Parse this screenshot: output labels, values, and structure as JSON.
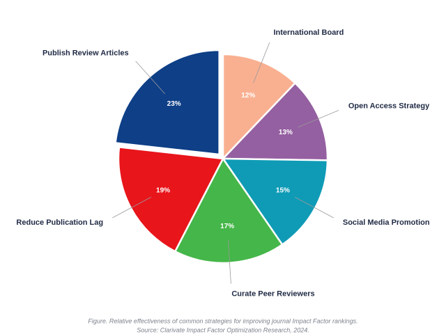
{
  "chart_data": {
    "type": "pie",
    "categories": [
      "International Board",
      "Open Access Strategy",
      "Social Media Promotion",
      "Curate Peer Reviewers",
      "Reduce Publication Lag",
      "Publish Review Articles"
    ],
    "values": [
      12,
      13,
      15,
      17,
      19,
      23
    ],
    "value_labels": [
      "12%",
      "13%",
      "15%",
      "17%",
      "19%",
      "23%"
    ],
    "colors": [
      "#f9b091",
      "#9460a1",
      "#0f9bb6",
      "#45b649",
      "#e8151b",
      "#0e3f87"
    ],
    "explode": 5,
    "caption": [
      "Figure. Relative effectiveness of common strategies for improving journal Impact Factor rankings.",
      "Source: Clarivate Impact Factor Optimization Research, 2024."
    ]
  }
}
